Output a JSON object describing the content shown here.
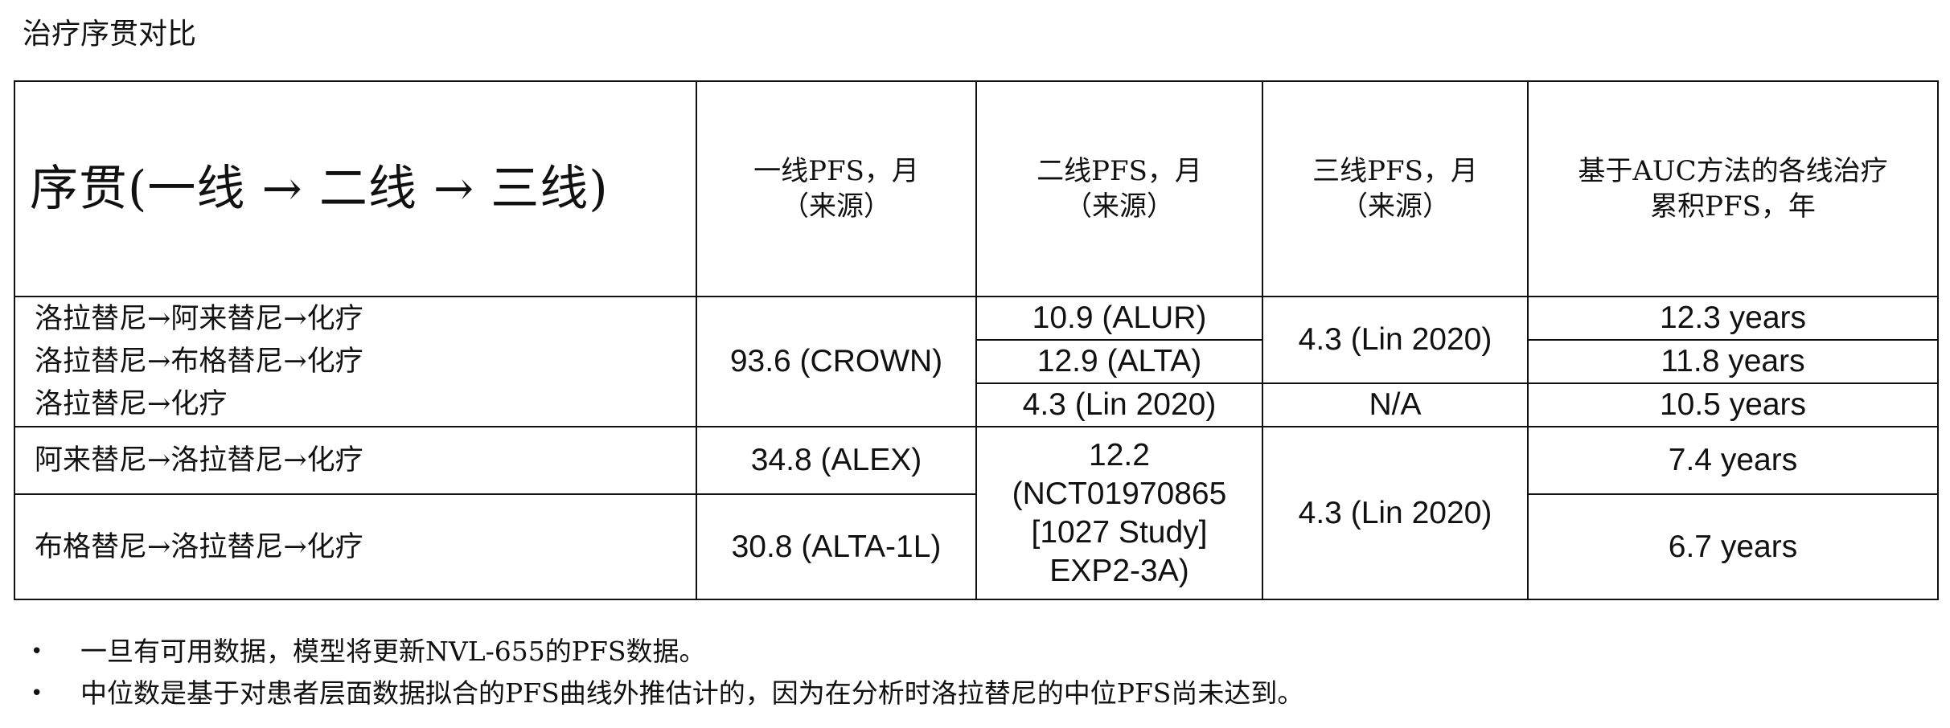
{
  "page_title": "治疗序贯对比",
  "table": {
    "header": {
      "sequence": "序贯(一线 → 二线 → 三线)",
      "first_line_label": "一线PFS，月",
      "first_line_source": "（来源）",
      "second_line_label": "二线PFS，月",
      "second_line_source": "（来源）",
      "third_line_label": "三线PFS，月",
      "third_line_source": "（来源）",
      "cumulative_line1": "基于AUC方法的各线治疗",
      "cumulative_line2": "累积PFS，年"
    },
    "rows": [
      {
        "sequence": "洛拉替尼→阿来替尼→化疗",
        "second": "10.9 (ALUR)",
        "cumulative": "12.3 years"
      },
      {
        "sequence": "洛拉替尼→布格替尼→化疗",
        "second": "12.9 (ALTA)",
        "cumulative": "11.8 years"
      },
      {
        "sequence": "洛拉替尼→化疗",
        "second": "4.3 (Lin 2020)",
        "third": "N/A",
        "cumulative": "10.5 years"
      },
      {
        "sequence": "阿来替尼→洛拉替尼→化疗",
        "first": "34.8 (ALEX)",
        "cumulative": "7.4 years"
      },
      {
        "sequence": "布格替尼→洛拉替尼→化疗",
        "first": "30.8 (ALTA-1L)",
        "cumulative": "6.7 years"
      }
    ],
    "merged": {
      "first_lorlatinib": "93.6 (CROWN)",
      "third_top": "4.3 (Lin 2020)",
      "second_bottom": "12.2 (NCT01970865 [1027 Study] EXP2-3A)",
      "third_bottom": "4.3 (Lin 2020)"
    }
  },
  "notes": [
    "一旦有可用数据，模型将更新NVL-655的PFS数据。",
    "中位数是基于对患者层面数据拟合的PFS曲线外推估计的，因为在分析时洛拉替尼的中位PFS尚未达到。"
  ],
  "colors": {
    "text": "#111111",
    "border": "#111111",
    "background": "#ffffff"
  }
}
